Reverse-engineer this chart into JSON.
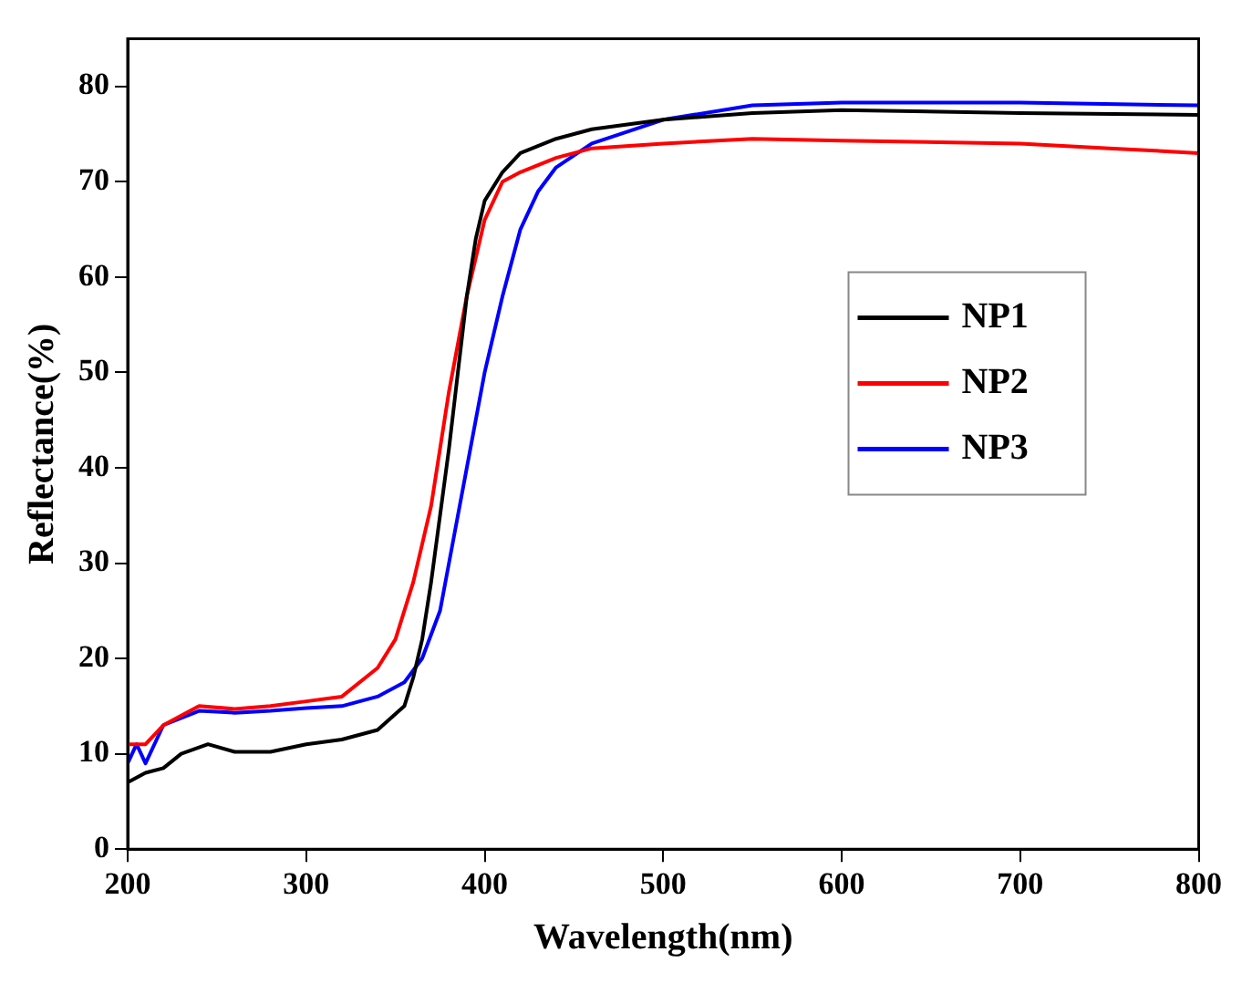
{
  "chart_data": {
    "type": "line",
    "xlabel": "Wavelength(nm)",
    "ylabel": "Reflectance(%)",
    "xlim": [
      200,
      800
    ],
    "ylim": [
      0,
      85
    ],
    "xticks": [
      200,
      300,
      400,
      500,
      600,
      700,
      800
    ],
    "yticks": [
      0,
      10,
      20,
      30,
      40,
      50,
      60,
      70,
      80
    ],
    "grid": false,
    "legend": "right",
    "marker": "none",
    "line_style": "solid",
    "series": [
      {
        "name": "NP1",
        "color": "#000000",
        "x": [
          200,
          210,
          220,
          230,
          245,
          260,
          280,
          300,
          320,
          340,
          355,
          360,
          365,
          370,
          375,
          380,
          385,
          390,
          395,
          400,
          410,
          420,
          440,
          460,
          500,
          550,
          600,
          700,
          800
        ],
        "values": [
          7,
          8,
          8.5,
          10,
          11,
          10.2,
          10.2,
          11,
          11.5,
          12.5,
          15,
          18,
          22,
          28,
          35,
          42,
          50,
          58,
          64,
          68,
          71,
          73,
          74.5,
          75.5,
          76.5,
          77.2,
          77.5,
          77.2,
          77
        ]
      },
      {
        "name": "NP2",
        "color": "#ff0000",
        "x": [
          200,
          210,
          220,
          240,
          260,
          280,
          300,
          320,
          340,
          350,
          360,
          365,
          370,
          375,
          380,
          390,
          400,
          410,
          420,
          440,
          460,
          500,
          550,
          600,
          700,
          750,
          800
        ],
        "values": [
          11,
          11,
          13,
          15,
          14.7,
          15,
          15.5,
          16,
          19,
          22,
          28,
          32,
          36,
          42,
          48,
          58,
          66,
          70,
          71,
          72.5,
          73.5,
          74,
          74.5,
          74.3,
          74,
          73.5,
          73
        ]
      },
      {
        "name": "NP3",
        "color": "#0000ff",
        "x": [
          200,
          205,
          210,
          220,
          240,
          260,
          280,
          300,
          320,
          340,
          355,
          365,
          375,
          380,
          390,
          400,
          410,
          420,
          430,
          440,
          460,
          500,
          550,
          600,
          700,
          800
        ],
        "values": [
          9,
          11,
          9,
          13,
          14.5,
          14.3,
          14.5,
          14.8,
          15,
          16,
          17.5,
          20,
          25,
          30,
          40,
          50,
          58,
          65,
          69,
          71.5,
          74,
          76.5,
          78,
          78.3,
          78.3,
          78
        ]
      }
    ]
  }
}
